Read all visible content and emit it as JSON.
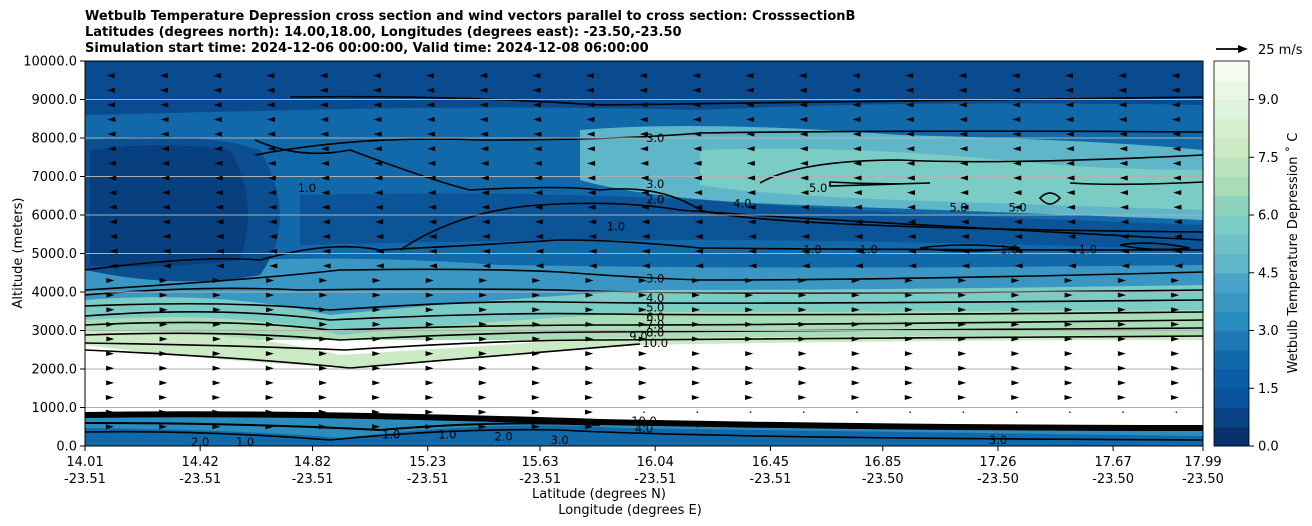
{
  "chart_data": {
    "type": "contour",
    "title_lines": [
      "Wetbulb Temperature Depression cross section and wind vectors parallel to cross section: CrosssectionB",
      "Latitudes (degrees north): 14.00,18.00, Longitudes (degrees east): -23.50,-23.50",
      "Simulation start time: 2024-12-06 00:00:00, Valid time: 2024-12-08 06:00:00"
    ],
    "ylabel": "Altitude (meters)",
    "xlabel_lines": [
      "Latitude (degrees N)",
      "Longitude (degrees E)"
    ],
    "ylim": [
      0,
      10000
    ],
    "yticks": [
      {
        "value": 0,
        "label": "0.0"
      },
      {
        "value": 1000,
        "label": "1000.0"
      },
      {
        "value": 2000,
        "label": "2000.0"
      },
      {
        "value": 3000,
        "label": "3000.0"
      },
      {
        "value": 4000,
        "label": "4000.0"
      },
      {
        "value": 5000,
        "label": "5000.0"
      },
      {
        "value": 6000,
        "label": "6000.0"
      },
      {
        "value": 7000,
        "label": "7000.0"
      },
      {
        "value": 8000,
        "label": "8000.0"
      },
      {
        "value": 9000,
        "label": "9000.0"
      },
      {
        "value": 10000,
        "label": "10000.0"
      }
    ],
    "xlim": [
      14.01,
      17.99
    ],
    "xticks": [
      {
        "lat": "14.01",
        "lon": "-23.51",
        "value": 14.01
      },
      {
        "lat": "14.42",
        "lon": "-23.51",
        "value": 14.42
      },
      {
        "lat": "14.82",
        "lon": "-23.51",
        "value": 14.82
      },
      {
        "lat": "15.23",
        "lon": "-23.51",
        "value": 15.23
      },
      {
        "lat": "15.63",
        "lon": "-23.51",
        "value": 15.63
      },
      {
        "lat": "16.04",
        "lon": "-23.51",
        "value": 16.04
      },
      {
        "lat": "16.45",
        "lon": "-23.51",
        "value": 16.45
      },
      {
        "lat": "16.85",
        "lon": "-23.50",
        "value": 16.85
      },
      {
        "lat": "17.26",
        "lon": "-23.50",
        "value": 17.26
      },
      {
        "lat": "17.67",
        "lon": "-23.50",
        "value": 17.67
      },
      {
        "lat": "17.99",
        "lon": "-23.50",
        "value": 17.99
      }
    ],
    "colorbar": {
      "label": "Wetbulb Temperature Depression ˚ C",
      "range": [
        0,
        10.0
      ],
      "ticks": [
        {
          "value": 0,
          "label": "0.0"
        },
        {
          "value": 1.5,
          "label": "1.5"
        },
        {
          "value": 3.0,
          "label": "3.0"
        },
        {
          "value": 4.5,
          "label": "4.5"
        },
        {
          "value": 6.0,
          "label": "6.0"
        },
        {
          "value": 7.5,
          "label": "7.5"
        },
        {
          "value": 9.0,
          "label": "9.0"
        }
      ],
      "levels": 20
    },
    "quiver_key": {
      "label": "25 m/s",
      "speed": 25
    },
    "contour_labels": [
      {
        "text": "1.0",
        "x": 14.8,
        "y": 6700
      },
      {
        "text": "3.0",
        "x": 16.04,
        "y": 8000
      },
      {
        "text": "3.0",
        "x": 16.04,
        "y": 6800
      },
      {
        "text": "2.0",
        "x": 16.04,
        "y": 6400
      },
      {
        "text": "1.0",
        "x": 15.9,
        "y": 5700
      },
      {
        "text": "4.0",
        "x": 16.35,
        "y": 6300
      },
      {
        "text": "5.0",
        "x": 16.62,
        "y": 6700
      },
      {
        "text": "5.0",
        "x": 17.12,
        "y": 6200
      },
      {
        "text": "5.0",
        "x": 17.33,
        "y": 6200
      },
      {
        "text": "1.0",
        "x": 16.6,
        "y": 5100
      },
      {
        "text": "1.0",
        "x": 16.8,
        "y": 5100
      },
      {
        "text": "1.0",
        "x": 17.3,
        "y": 5100
      },
      {
        "text": "1.0",
        "x": 17.58,
        "y": 5100
      },
      {
        "text": "3.0",
        "x": 16.04,
        "y": 4350
      },
      {
        "text": "4.0",
        "x": 16.04,
        "y": 3850
      },
      {
        "text": "5.0",
        "x": 16.04,
        "y": 3600
      },
      {
        "text": "6.0",
        "x": 16.04,
        "y": 3350
      },
      {
        "text": "7.0",
        "x": 16.04,
        "y": 3150
      },
      {
        "text": "8.0",
        "x": 16.04,
        "y": 2950
      },
      {
        "text": "9.0",
        "x": 15.98,
        "y": 2850
      },
      {
        "text": "10.0",
        "x": 16.04,
        "y": 2680
      },
      {
        "text": "2.0",
        "x": 14.42,
        "y": 100
      },
      {
        "text": "1.0",
        "x": 14.58,
        "y": 100
      },
      {
        "text": "1.0",
        "x": 15.1,
        "y": 300
      },
      {
        "text": "1.0",
        "x": 15.3,
        "y": 300
      },
      {
        "text": "2.0",
        "x": 15.5,
        "y": 250
      },
      {
        "text": "3.0",
        "x": 15.7,
        "y": 150
      },
      {
        "text": "10.0",
        "x": 16.0,
        "y": 650
      },
      {
        "text": "4.0",
        "x": 16.0,
        "y": 450
      },
      {
        "text": "3.0",
        "x": 17.26,
        "y": 150
      }
    ]
  }
}
